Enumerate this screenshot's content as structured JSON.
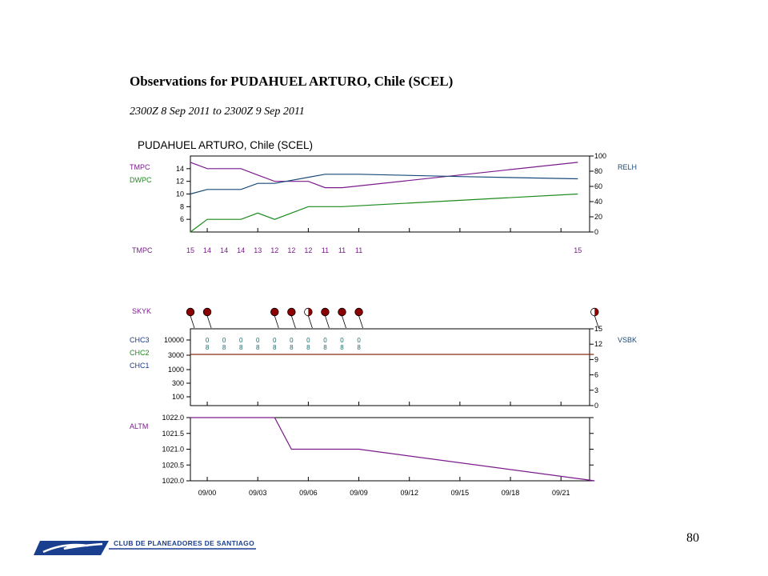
{
  "document": {
    "title": "Observations for PUDAHUEL ARTURO, Chile (SCEL)",
    "subtitle": "2300Z 8 Sep 2011 to 2300Z 9 Sep 2011",
    "page_number": "80",
    "logo_text": "CLUB DE PLANEADORES DE SANTIAGO"
  },
  "colors": {
    "tmpc": "#7a1a8c",
    "dwpc": "#1c8a1c",
    "relh": "#1a4a7a",
    "altm": "#7a1a8c",
    "skyk_fill": "#8b0000",
    "cloud_code": "#1a6a6a",
    "vsbk": "#8b2a10",
    "label_blue": "#1a3a8c",
    "logo_blue": "#1b3f8f"
  },
  "chart_data": [
    {
      "type": "line",
      "name": "temperature-panel",
      "title": "PUDAHUEL ARTURO, Chile (SCEL)",
      "x": [
        0,
        1,
        2,
        3,
        4,
        5,
        6,
        7,
        8,
        9,
        23
      ],
      "left_axis": {
        "range": [
          4,
          16
        ],
        "ticks": [
          6,
          8,
          10,
          12,
          14
        ]
      },
      "right_axis": {
        "range": [
          0,
          100
        ],
        "ticks": [
          0,
          20,
          40,
          60,
          80,
          100
        ],
        "label": "RELH"
      },
      "series": [
        {
          "name": "TMPC",
          "axis": "left",
          "values": [
            15,
            14,
            14,
            14,
            13,
            12,
            12,
            12,
            11,
            11,
            15
          ]
        },
        {
          "name": "DWPC",
          "axis": "left",
          "values": [
            4,
            6,
            6,
            6,
            7,
            6,
            7,
            8,
            8,
            8,
            10
          ]
        },
        {
          "name": "RELH",
          "axis": "right",
          "x": [
            0,
            1,
            3,
            4,
            5,
            7,
            8,
            10,
            16,
            23
          ],
          "values": [
            50,
            56,
            56,
            64,
            64,
            72,
            76,
            76,
            73,
            70
          ]
        }
      ],
      "value_row": {
        "label": "TMPC",
        "values": [
          "15",
          "14",
          "14",
          "14",
          "13",
          "12",
          "12",
          "12",
          "11",
          "11",
          "11",
          "15"
        ],
        "x": [
          0,
          1,
          2,
          3,
          4,
          5,
          6,
          7,
          8,
          9,
          10,
          23
        ]
      }
    },
    {
      "type": "scatter",
      "name": "cloud-visibility-panel",
      "left_axis": {
        "ticks": [
          "10000",
          "3000",
          "1000",
          "300",
          "100"
        ],
        "labels": [
          "CHC3",
          "CHC2",
          "CHC1"
        ]
      },
      "right_axis": {
        "range": [
          0,
          15
        ],
        "ticks": [
          0,
          3,
          6,
          9,
          12,
          15
        ],
        "label": "VSBK"
      },
      "skyk": {
        "label": "SKYK",
        "stations": [
          {
            "x": 0,
            "cover": "overcast"
          },
          {
            "x": 1,
            "cover": "overcast"
          },
          {
            "x": 5,
            "cover": "overcast"
          },
          {
            "x": 6,
            "cover": "overcast"
          },
          {
            "x": 7,
            "cover": "broken"
          },
          {
            "x": 8,
            "cover": "overcast"
          },
          {
            "x": 9,
            "cover": "overcast"
          },
          {
            "x": 10,
            "cover": "overcast"
          },
          {
            "x": 24,
            "cover": "broken"
          }
        ]
      },
      "cloud_codes": {
        "upper_row": {
          "x": [
            1,
            2,
            3,
            4,
            5,
            6,
            7,
            8,
            9,
            10
          ],
          "values": [
            "0",
            "0",
            "0",
            "0",
            "0",
            "0",
            "0",
            "0",
            "0",
            "0"
          ]
        },
        "lower_row": {
          "x": [
            1,
            2,
            3,
            4,
            5,
            6,
            7,
            8,
            9,
            10
          ],
          "values": [
            "8",
            "8",
            "8",
            "8",
            "8",
            "8",
            "8",
            "8",
            "8",
            "8"
          ]
        }
      },
      "vsbk": {
        "x": [
          0,
          24
        ],
        "values": [
          10,
          10
        ]
      }
    },
    {
      "type": "line",
      "name": "altimeter-panel",
      "left_axis": {
        "range": [
          1020.0,
          1022.0
        ],
        "ticks": [
          "1020.0",
          "1020.5",
          "1021.0",
          "1021.5",
          "1022.0"
        ]
      },
      "series": [
        {
          "name": "ALTM",
          "x": [
            0,
            5,
            6,
            10,
            24
          ],
          "values": [
            1022.0,
            1022.0,
            1021.0,
            1021.0,
            1020.0
          ]
        }
      ],
      "x_axis": {
        "tick_labels": [
          "09/00",
          "09/03",
          "09/06",
          "09/09",
          "09/12",
          "09/15",
          "09/18",
          "09/21"
        ],
        "tick_x": [
          1,
          4,
          7,
          10,
          13,
          16,
          19,
          22
        ]
      }
    }
  ]
}
